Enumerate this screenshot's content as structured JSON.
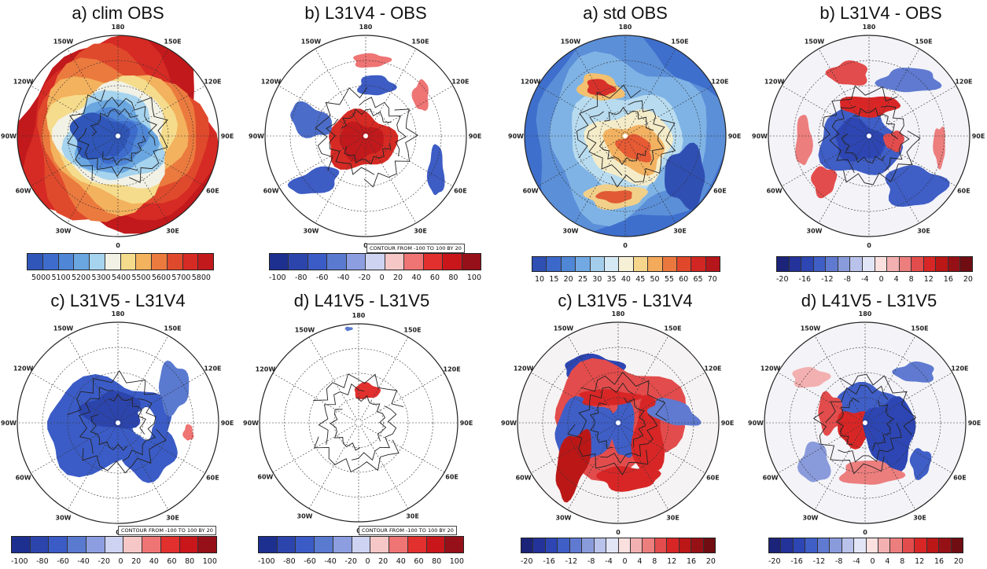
{
  "panels": [
    {
      "id": "p1",
      "title": "a) clim OBS",
      "ticks": [
        "5000",
        "5100",
        "5200",
        "5300",
        "5400",
        "5500",
        "5600",
        "5700",
        "5800"
      ],
      "contour_note": ""
    },
    {
      "id": "p2",
      "title": "b) L31V4 - OBS",
      "ticks": [
        "-100",
        "-80",
        "-60",
        "-40",
        "-20",
        "0",
        "20",
        "40",
        "60",
        "80",
        "100"
      ],
      "contour_note": "CONTOUR FROM -100 TO 100 BY 20"
    },
    {
      "id": "p3",
      "title": "a) std OBS",
      "ticks": [
        "10",
        "15",
        "20",
        "25",
        "30",
        "35",
        "40",
        "45",
        "50",
        "55",
        "60",
        "65",
        "70"
      ],
      "contour_note": ""
    },
    {
      "id": "p4",
      "title": "b) L31V4 - OBS",
      "ticks": [
        "-20",
        "-16",
        "-12",
        "-8",
        "-4",
        "0",
        "4",
        "8",
        "12",
        "16",
        "20"
      ],
      "contour_note": ""
    },
    {
      "id": "p5",
      "title": "c) L31V5 - L31V4",
      "ticks": [
        "-100",
        "-80",
        "-60",
        "-40",
        "-20",
        "0",
        "20",
        "40",
        "60",
        "80",
        "100"
      ],
      "contour_note": "CONTOUR FROM -100 TO 100 BY 20"
    },
    {
      "id": "p6",
      "title": "d) L41V5 - L31V5",
      "ticks": [
        "-100",
        "-80",
        "-60",
        "-40",
        "-20",
        "0",
        "20",
        "40",
        "60",
        "80",
        "100"
      ],
      "contour_note": "CONTOUR FROM -100 TO 100 BY 20"
    },
    {
      "id": "p7",
      "title": "c) L31V5 - L31V4",
      "ticks": [
        "-20",
        "-16",
        "-12",
        "-8",
        "-4",
        "0",
        "4",
        "8",
        "12",
        "16",
        "20"
      ],
      "contour_note": ""
    },
    {
      "id": "p8",
      "title": "d) L41V5 - L31V5",
      "ticks": [
        "-20",
        "-16",
        "-12",
        "-8",
        "-4",
        "0",
        "4",
        "8",
        "12",
        "16",
        "20"
      ],
      "contour_note": ""
    }
  ],
  "longitude_labels": [
    "180",
    "150E",
    "120E",
    "90E",
    "60E",
    "30E",
    "0",
    "30W",
    "60W",
    "90W",
    "120W",
    "150W"
  ],
  "colors": {
    "clim_scale": [
      "#2f56b8",
      "#3d6ccc",
      "#4f86d6",
      "#6aa6e0",
      "#a6d3ee",
      "#f1f1e6",
      "#f5dc8c",
      "#f3b25e",
      "#eb7a3e",
      "#e04a2c",
      "#d62a24",
      "#c2191c"
    ],
    "std_scale": [
      "#2f4fb3",
      "#3c68c9",
      "#4f86d6",
      "#73a9e3",
      "#a4cdec",
      "#d4e9f4",
      "#f5f0d6",
      "#f6d58c",
      "#f3aa5a",
      "#ea783e",
      "#e0472b",
      "#d12623",
      "#b5161c"
    ],
    "diff_scale": [
      "#1d2f8f",
      "#2c45ad",
      "#3b5cc6",
      "#5a7ad0",
      "#8d9ee0",
      "#cdd3f1",
      "#f6c7c7",
      "#ef7474",
      "#e2302e",
      "#c8161b",
      "#951018"
    ],
    "fine_scale": [
      "#1b2478",
      "#23339a",
      "#2d46b3",
      "#3f5ec6",
      "#5f7ad0",
      "#8a9bdc",
      "#b8c2ea",
      "#e2e5f6",
      "#fbe0e0",
      "#f3b0b0",
      "#ec7e7e",
      "#e34c4c",
      "#d82626",
      "#bb1717",
      "#961116",
      "#6f0d12"
    ]
  }
}
